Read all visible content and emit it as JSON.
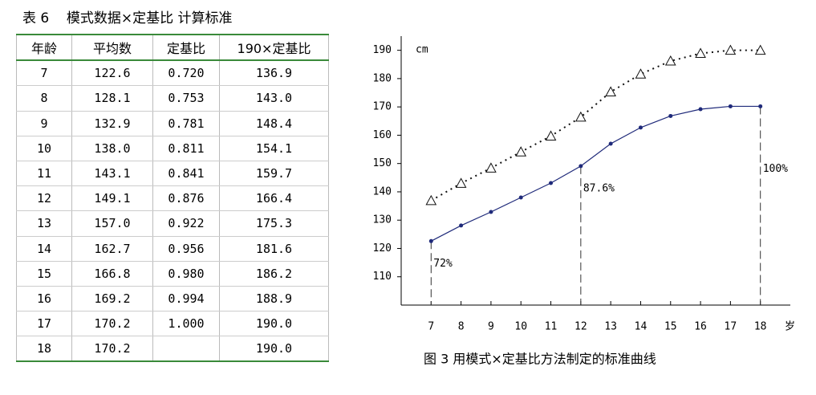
{
  "table": {
    "title": "表 6    模式数据×定基比 计算标准",
    "header": [
      "年龄",
      "平均数",
      "定基比",
      "190×定基比"
    ],
    "rows": [
      [
        "7",
        "122.6",
        "0.720",
        "136.9"
      ],
      [
        "8",
        "128.1",
        "0.753",
        "143.0"
      ],
      [
        "9",
        "132.9",
        "0.781",
        "148.4"
      ],
      [
        "10",
        "138.0",
        "0.811",
        "154.1"
      ],
      [
        "11",
        "143.1",
        "0.841",
        "159.7"
      ],
      [
        "12",
        "149.1",
        "0.876",
        "166.4"
      ],
      [
        "13",
        "157.0",
        "0.922",
        "175.3"
      ],
      [
        "14",
        "162.7",
        "0.956",
        "181.6"
      ],
      [
        "15",
        "166.8",
        "0.980",
        "186.2"
      ],
      [
        "16",
        "169.2",
        "0.994",
        "188.9"
      ],
      [
        "17",
        "170.2",
        "1.000",
        "190.0"
      ],
      [
        "18",
        "170.2",
        null,
        "190.0"
      ]
    ]
  },
  "chart_data": {
    "type": "line",
    "caption": "图 3    用模式×定基比方法制定的标准曲线",
    "y_label": "cm",
    "x_label": "岁",
    "x": [
      7,
      8,
      9,
      10,
      11,
      12,
      13,
      14,
      15,
      16,
      17,
      18
    ],
    "series": [
      {
        "color": "#1f2a7a",
        "style": "solid",
        "marker": "dot",
        "values": [
          122.6,
          128.1,
          132.9,
          138.0,
          143.1,
          149.1,
          157.0,
          162.7,
          166.8,
          169.2,
          170.2,
          170.2
        ]
      },
      {
        "color": "#111111",
        "style": "dotted",
        "marker": "triangle",
        "values": [
          136.9,
          143.0,
          148.4,
          154.1,
          159.7,
          166.4,
          175.3,
          181.6,
          186.2,
          188.9,
          190.0,
          190.0
        ]
      }
    ],
    "annotations": [
      {
        "text": "72%",
        "x": 7
      },
      {
        "text": "87.6%",
        "x": 12
      },
      {
        "text": "100%",
        "x": 18
      }
    ],
    "xlim": [
      6,
      19
    ],
    "ylim": [
      100,
      195
    ],
    "xticks": [
      7,
      8,
      9,
      10,
      11,
      12,
      13,
      14,
      15,
      16,
      17,
      18
    ],
    "yticks": [
      110,
      120,
      130,
      140,
      150,
      160,
      170,
      180,
      190
    ]
  }
}
